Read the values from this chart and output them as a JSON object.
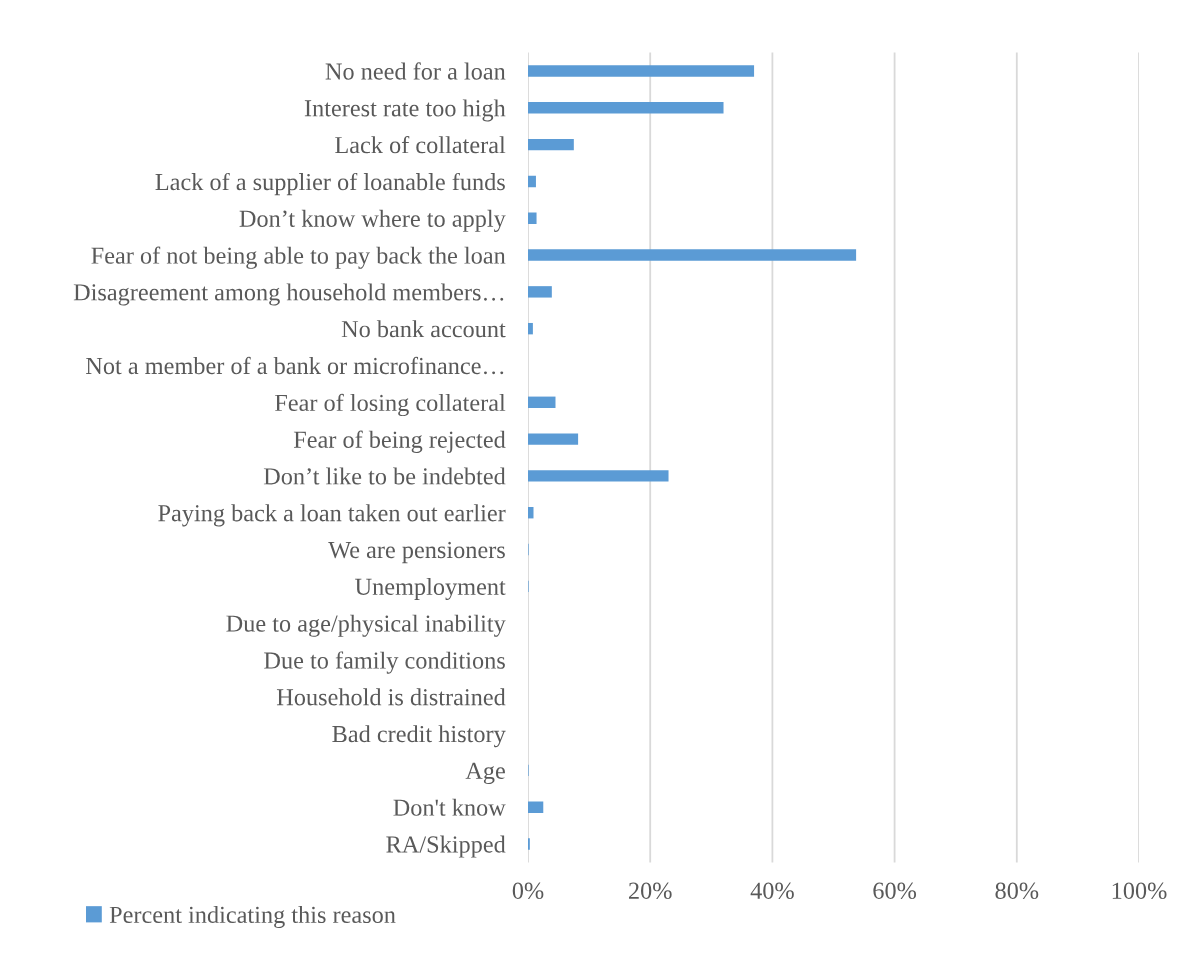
{
  "chart_data": {
    "type": "bar",
    "orientation": "horizontal",
    "categories": [
      "No need for a loan",
      "Interest rate too high",
      "Lack of collateral",
      "Lack of a supplier of loanable funds",
      "Don’t know where to apply",
      "Fear of not being able to pay back the loan",
      "Disagreement among household members…",
      "No bank account",
      "Not a member of a bank or microfinance…",
      "Fear of losing collateral",
      "Fear of being rejected",
      "Don’t like to be indebted",
      "Paying back a loan taken out earlier",
      "We are pensioners",
      "Unemployment",
      "Due to age/physical inability",
      "Due to family conditions",
      "Household is distrained",
      "Bad credit history",
      "Age",
      "Don't know",
      "RA/Skipped"
    ],
    "series": [
      {
        "name": "Percent indicating this reason",
        "color": "#5b9bd5",
        "values": [
          37.0,
          32.0,
          7.5,
          1.3,
          1.4,
          53.7,
          3.9,
          0.8,
          0,
          4.5,
          8.2,
          23.0,
          0.9,
          0.1,
          0.1,
          0,
          0,
          0,
          0,
          0.1,
          2.5,
          0.3
        ]
      }
    ],
    "xlim": [
      0,
      100
    ],
    "xticks": [
      {
        "value": 0,
        "label": "0%"
      },
      {
        "value": 20,
        "label": "20%"
      },
      {
        "value": 40,
        "label": "40%"
      },
      {
        "value": 60,
        "label": "60%"
      },
      {
        "value": 80,
        "label": "80%"
      },
      {
        "value": 100,
        "label": "100%"
      }
    ],
    "grid": "x",
    "legend": "bottom left"
  }
}
